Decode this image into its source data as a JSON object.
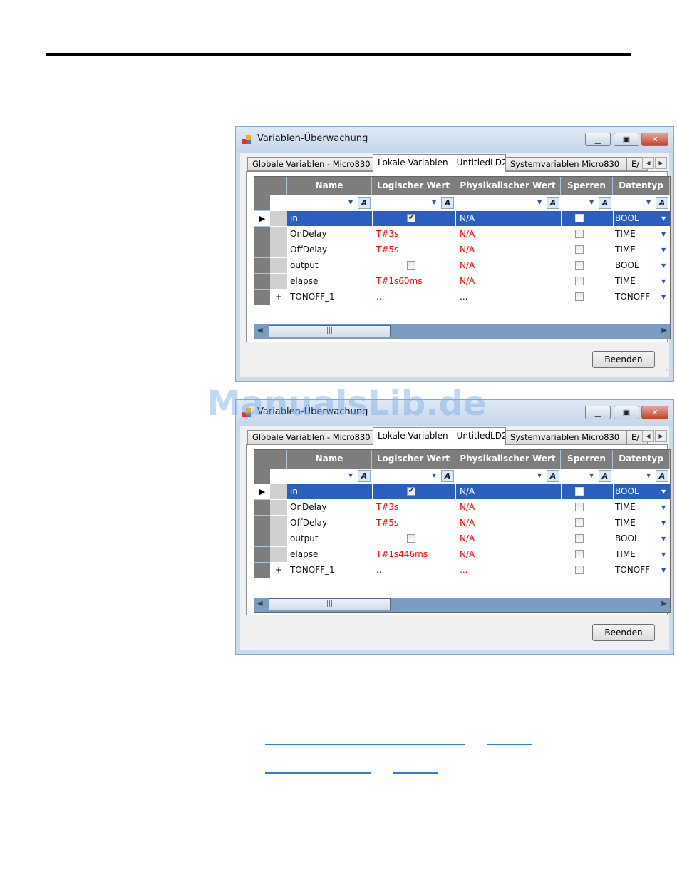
{
  "colors": {
    "selection": "#2a5fbf",
    "red": "#ff0000",
    "header": "#7d7d7d",
    "link": "#2f7fd6"
  },
  "watermark": "ManualsLib.de",
  "windows": [
    {
      "title": "Variablen-Überwachung",
      "tabs": [
        "Globale Variablen - Micro830",
        "Lokale Variablen - UntitledLD2",
        "Systemvariablen Micro830",
        "E/"
      ],
      "active_tab": 1,
      "columns": [
        "Name",
        "Logischer Wert",
        "Physikalischer Wert",
        "Sperren",
        "Datentyp"
      ],
      "rows": [
        {
          "expander": "",
          "name": "in",
          "logical": "",
          "logical_check": true,
          "physical": "N/A",
          "type": "BOOL",
          "selected": true
        },
        {
          "expander": "",
          "name": "OnDelay",
          "logical": "T#3s",
          "physical": "N/A",
          "type": "TIME"
        },
        {
          "expander": "",
          "name": "OffDelay",
          "logical": "T#5s",
          "physical": "N/A",
          "type": "TIME"
        },
        {
          "expander": "",
          "name": "output",
          "logical": "",
          "logical_check": false,
          "physical": "N/A",
          "type": "BOOL"
        },
        {
          "expander": "",
          "name": "elapse",
          "logical": "T#1s60ms",
          "physical": "N/A",
          "type": "TIME"
        },
        {
          "expander": "+",
          "name": "TONOFF_1",
          "logical": "...",
          "physical": "...",
          "type": "TONOFF"
        }
      ],
      "button": "Beenden"
    },
    {
      "title": "Variablen-Überwachung",
      "tabs": [
        "Globale Variablen - Micro830",
        "Lokale Variablen - UntitledLD2",
        "Systemvariablen Micro830",
        "E/"
      ],
      "active_tab": 1,
      "columns": [
        "Name",
        "Logischer Wert",
        "Physikalischer Wert",
        "Sperren",
        "Datentyp"
      ],
      "rows": [
        {
          "expander": "",
          "name": "in",
          "logical": "",
          "logical_check": true,
          "physical": "N/A",
          "type": "BOOL",
          "selected": true
        },
        {
          "expander": "",
          "name": "OnDelay",
          "logical": "T#3s",
          "physical": "N/A",
          "type": "TIME"
        },
        {
          "expander": "",
          "name": "OffDelay",
          "logical": "T#5s",
          "physical": "N/A",
          "type": "TIME"
        },
        {
          "expander": "",
          "name": "output",
          "logical": "",
          "logical_check": false,
          "physical": "N/A",
          "type": "BOOL"
        },
        {
          "expander": "",
          "name": "elapse",
          "logical": "T#1s446ms",
          "physical": "N/A",
          "type": "TIME"
        },
        {
          "expander": "+",
          "name": "TONOFF_1",
          "logical": "...",
          "physical": "...",
          "type": "TONOFF"
        }
      ],
      "button": "Beenden"
    }
  ]
}
